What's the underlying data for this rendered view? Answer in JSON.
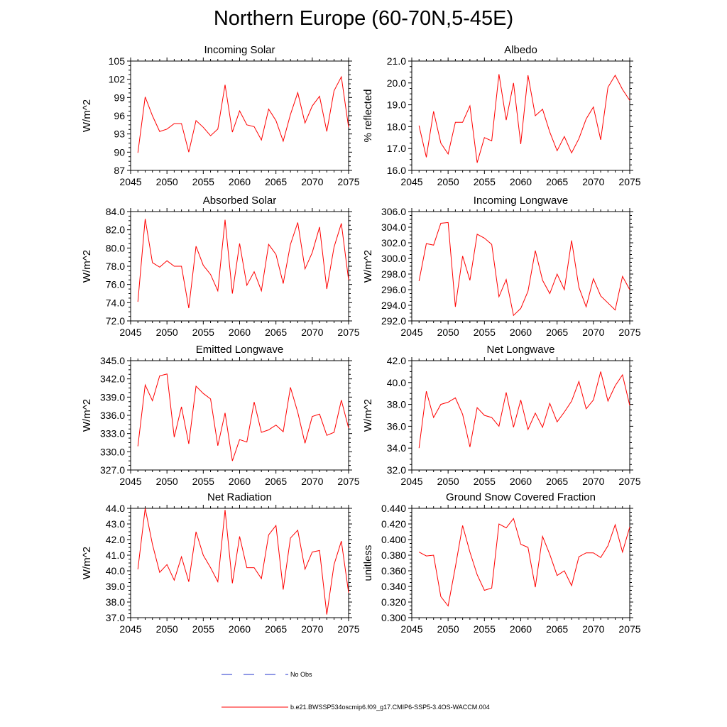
{
  "title": "Northern Europe (60-70N,5-45E)",
  "colors": {
    "series": "#ff0000",
    "obs": "#2233cc",
    "axis": "#000000"
  },
  "legend": {
    "obs_label": "No Obs",
    "model_label": "b.e21.BWSSP534oscmip6.f09_g17.CMIP6-SSP5-3.4OS-WACCM.004"
  },
  "chart_data": [
    {
      "type": "line",
      "title": "Incoming Solar",
      "ylabel": "W/m^2",
      "xlabel": "",
      "xlim": [
        2045,
        2075
      ],
      "ylim": [
        87,
        105
      ],
      "yticks": [
        "87",
        "90",
        "93",
        "96",
        "99",
        "102",
        "105"
      ],
      "xticks": [
        "2045",
        "2050",
        "2055",
        "2060",
        "2065",
        "2070",
        "2075"
      ],
      "x": [
        2046,
        2047,
        2048,
        2049,
        2050,
        2051,
        2052,
        2053,
        2054,
        2055,
        2056,
        2057,
        2058,
        2059,
        2060,
        2061,
        2062,
        2063,
        2064,
        2065,
        2066,
        2067,
        2068,
        2069,
        2070,
        2071,
        2072,
        2073,
        2074,
        2075
      ],
      "values": [
        89.9,
        99.1,
        96.0,
        93.4,
        93.8,
        94.7,
        94.7,
        90.0,
        95.2,
        94.1,
        92.7,
        93.8,
        101.1,
        93.3,
        96.8,
        94.5,
        94.2,
        92.0,
        97.1,
        95.2,
        91.8,
        96.2,
        99.8,
        94.8,
        97.6,
        99.2,
        93.4,
        100.1,
        102.4,
        94.1
      ]
    },
    {
      "type": "line",
      "title": "Albedo",
      "ylabel": "% reflected",
      "xlabel": "",
      "xlim": [
        2045,
        2075
      ],
      "ylim": [
        16.0,
        21.0
      ],
      "yticks": [
        "16.0",
        "17.0",
        "18.0",
        "19.0",
        "20.0",
        "21.0"
      ],
      "xticks": [
        "2045",
        "2050",
        "2055",
        "2060",
        "2065",
        "2070",
        "2075"
      ],
      "x": [
        2046,
        2047,
        2048,
        2049,
        2050,
        2051,
        2052,
        2053,
        2054,
        2055,
        2056,
        2057,
        2058,
        2059,
        2060,
        2061,
        2062,
        2063,
        2064,
        2065,
        2066,
        2067,
        2068,
        2069,
        2070,
        2071,
        2072,
        2073,
        2074,
        2075
      ],
      "values": [
        18.05,
        16.6,
        18.7,
        17.25,
        16.75,
        18.2,
        18.2,
        18.95,
        16.35,
        17.5,
        17.35,
        20.4,
        18.3,
        20.0,
        17.2,
        20.35,
        18.5,
        18.8,
        17.75,
        16.9,
        17.55,
        16.8,
        17.45,
        18.35,
        18.9,
        17.4,
        19.8,
        20.35,
        19.7,
        19.2
      ]
    },
    {
      "type": "line",
      "title": "Absorbed Solar",
      "ylabel": "W/m^2",
      "xlabel": "",
      "xlim": [
        2045,
        2075
      ],
      "ylim": [
        72.0,
        84.0
      ],
      "yticks": [
        "72.0",
        "74.0",
        "76.0",
        "78.0",
        "80.0",
        "82.0",
        "84.0"
      ],
      "xticks": [
        "2045",
        "2050",
        "2055",
        "2060",
        "2065",
        "2070",
        "2075"
      ],
      "x": [
        2046,
        2047,
        2048,
        2049,
        2050,
        2051,
        2052,
        2053,
        2054,
        2055,
        2056,
        2057,
        2058,
        2059,
        2060,
        2061,
        2062,
        2063,
        2064,
        2065,
        2066,
        2067,
        2068,
        2069,
        2070,
        2071,
        2072,
        2073,
        2074,
        2075
      ],
      "values": [
        74.1,
        83.2,
        78.4,
        77.9,
        78.6,
        78.0,
        78.0,
        73.4,
        80.2,
        78.1,
        77.1,
        75.3,
        83.1,
        75.0,
        80.5,
        75.9,
        77.4,
        75.3,
        80.4,
        79.3,
        76.1,
        80.4,
        82.8,
        77.7,
        79.5,
        82.3,
        75.5,
        80.1,
        82.7,
        76.5
      ]
    },
    {
      "type": "line",
      "title": "Incoming Longwave",
      "ylabel": "W/m^2",
      "xlabel": "",
      "xlim": [
        2045,
        2075
      ],
      "ylim": [
        292.0,
        306.0
      ],
      "yticks": [
        "292.0",
        "294.0",
        "296.0",
        "298.0",
        "300.0",
        "302.0",
        "304.0",
        "306.0"
      ],
      "xticks": [
        "2045",
        "2050",
        "2055",
        "2060",
        "2065",
        "2070",
        "2075"
      ],
      "x": [
        2046,
        2047,
        2048,
        2049,
        2050,
        2051,
        2052,
        2053,
        2054,
        2055,
        2056,
        2057,
        2058,
        2059,
        2060,
        2061,
        2062,
        2063,
        2064,
        2065,
        2066,
        2067,
        2068,
        2069,
        2070,
        2071,
        2072,
        2073,
        2074,
        2075
      ],
      "values": [
        297.1,
        301.9,
        301.7,
        304.5,
        304.6,
        293.8,
        300.3,
        297.2,
        303.1,
        302.6,
        301.8,
        295.1,
        297.3,
        292.7,
        293.6,
        295.8,
        301.0,
        297.2,
        295.5,
        298.0,
        296.0,
        302.3,
        296.3,
        293.8,
        297.4,
        295.2,
        294.3,
        293.4,
        297.7,
        296.0
      ]
    },
    {
      "type": "line",
      "title": "Emitted Longwave",
      "ylabel": "W/m^2",
      "xlabel": "",
      "xlim": [
        2045,
        2075
      ],
      "ylim": [
        327.0,
        345.0
      ],
      "yticks": [
        "327.0",
        "330.0",
        "333.0",
        "336.0",
        "339.0",
        "342.0",
        "345.0"
      ],
      "xticks": [
        "2045",
        "2050",
        "2055",
        "2060",
        "2065",
        "2070",
        "2075"
      ],
      "x": [
        2046,
        2047,
        2048,
        2049,
        2050,
        2051,
        2052,
        2053,
        2054,
        2055,
        2056,
        2057,
        2058,
        2059,
        2060,
        2061,
        2062,
        2063,
        2064,
        2065,
        2066,
        2067,
        2068,
        2069,
        2070,
        2071,
        2072,
        2073,
        2074,
        2075
      ],
      "values": [
        330.9,
        341.0,
        338.4,
        342.5,
        342.8,
        332.4,
        337.4,
        331.3,
        340.8,
        339.6,
        338.7,
        331.0,
        336.4,
        328.5,
        332.0,
        331.6,
        338.2,
        333.2,
        333.6,
        334.4,
        333.3,
        340.6,
        336.5,
        331.4,
        335.8,
        336.2,
        332.7,
        333.2,
        338.5,
        333.9
      ]
    },
    {
      "type": "line",
      "title": "Net Longwave",
      "ylabel": "W/m^2",
      "xlabel": "",
      "xlim": [
        2045,
        2075
      ],
      "ylim": [
        32.0,
        42.0
      ],
      "yticks": [
        "32.0",
        "34.0",
        "36.0",
        "38.0",
        "40.0",
        "42.0"
      ],
      "xticks": [
        "2045",
        "2050",
        "2055",
        "2060",
        "2065",
        "2070",
        "2075"
      ],
      "x": [
        2046,
        2047,
        2048,
        2049,
        2050,
        2051,
        2052,
        2053,
        2054,
        2055,
        2056,
        2057,
        2058,
        2059,
        2060,
        2061,
        2062,
        2063,
        2064,
        2065,
        2066,
        2067,
        2068,
        2069,
        2070,
        2071,
        2072,
        2073,
        2074,
        2075
      ],
      "values": [
        34.0,
        39.2,
        36.8,
        38.0,
        38.2,
        38.6,
        37.1,
        34.1,
        37.7,
        37.0,
        36.8,
        36.0,
        39.1,
        35.9,
        38.4,
        35.7,
        37.2,
        35.9,
        38.1,
        36.4,
        37.3,
        38.3,
        40.1,
        37.6,
        38.4,
        41.0,
        38.3,
        39.7,
        40.7,
        37.9
      ]
    },
    {
      "type": "line",
      "title": "Net Radiation",
      "ylabel": "W/m^2",
      "xlabel": "",
      "xlim": [
        2045,
        2075
      ],
      "ylim": [
        37.0,
        44.0
      ],
      "yticks": [
        "37.0",
        "38.0",
        "39.0",
        "40.0",
        "41.0",
        "42.0",
        "43.0",
        "44.0"
      ],
      "xticks": [
        "2045",
        "2050",
        "2055",
        "2060",
        "2065",
        "2070",
        "2075"
      ],
      "x": [
        2046,
        2047,
        2048,
        2049,
        2050,
        2051,
        2052,
        2053,
        2054,
        2055,
        2056,
        2057,
        2058,
        2059,
        2060,
        2061,
        2062,
        2063,
        2064,
        2065,
        2066,
        2067,
        2068,
        2069,
        2070,
        2071,
        2072,
        2073,
        2074,
        2075
      ],
      "values": [
        40.1,
        44.0,
        41.7,
        39.9,
        40.4,
        39.4,
        40.9,
        39.3,
        42.5,
        41.0,
        40.2,
        39.3,
        43.9,
        39.2,
        42.2,
        40.2,
        40.2,
        39.5,
        42.3,
        42.9,
        38.8,
        42.1,
        42.6,
        40.1,
        41.2,
        41.3,
        37.2,
        40.4,
        41.9,
        38.6
      ]
    },
    {
      "type": "line",
      "title": "Ground Snow Covered Fraction",
      "ylabel": "unitless",
      "xlabel": "",
      "xlim": [
        2045,
        2075
      ],
      "ylim": [
        0.3,
        0.44
      ],
      "yticks": [
        "0.300",
        "0.320",
        "0.340",
        "0.360",
        "0.380",
        "0.400",
        "0.420",
        "0.440"
      ],
      "xticks": [
        "2045",
        "2050",
        "2055",
        "2060",
        "2065",
        "2070",
        "2075"
      ],
      "x": [
        2046,
        2047,
        2048,
        2049,
        2050,
        2051,
        2052,
        2053,
        2054,
        2055,
        2056,
        2057,
        2058,
        2059,
        2060,
        2061,
        2062,
        2063,
        2064,
        2065,
        2066,
        2067,
        2068,
        2069,
        2070,
        2071,
        2072,
        2073,
        2074,
        2075
      ],
      "values": [
        0.384,
        0.379,
        0.38,
        0.327,
        0.315,
        0.365,
        0.418,
        0.384,
        0.355,
        0.335,
        0.338,
        0.42,
        0.415,
        0.427,
        0.394,
        0.39,
        0.339,
        0.404,
        0.381,
        0.354,
        0.36,
        0.341,
        0.378,
        0.383,
        0.383,
        0.377,
        0.392,
        0.419,
        0.384,
        0.416
      ]
    }
  ]
}
